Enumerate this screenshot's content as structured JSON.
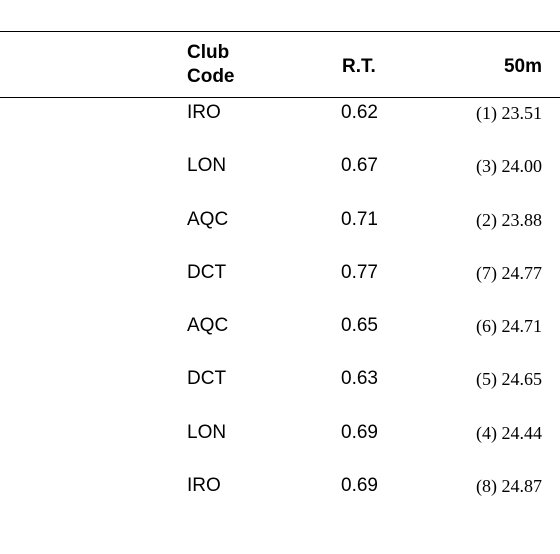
{
  "header": {
    "club_code_line1": "Club",
    "club_code_line2": "Code",
    "rt": "R.T.",
    "split": "50m"
  },
  "rows": [
    {
      "club": "IRO",
      "rt": "0.62",
      "split": "(1) 23.51"
    },
    {
      "club": "LON",
      "rt": "0.67",
      "split": "(3) 24.00"
    },
    {
      "club": "AQC",
      "rt": "0.71",
      "split": "(2) 23.88"
    },
    {
      "club": "DCT",
      "rt": "0.77",
      "split": "(7) 24.77"
    },
    {
      "club": "AQC",
      "rt": "0.65",
      "split": "(6) 24.71"
    },
    {
      "club": "DCT",
      "rt": "0.63",
      "split": "(5) 24.65"
    },
    {
      "club": "LON",
      "rt": "0.69",
      "split": "(4) 24.44"
    },
    {
      "club": "IRO",
      "rt": "0.69",
      "split": "(8) 24.87"
    }
  ]
}
